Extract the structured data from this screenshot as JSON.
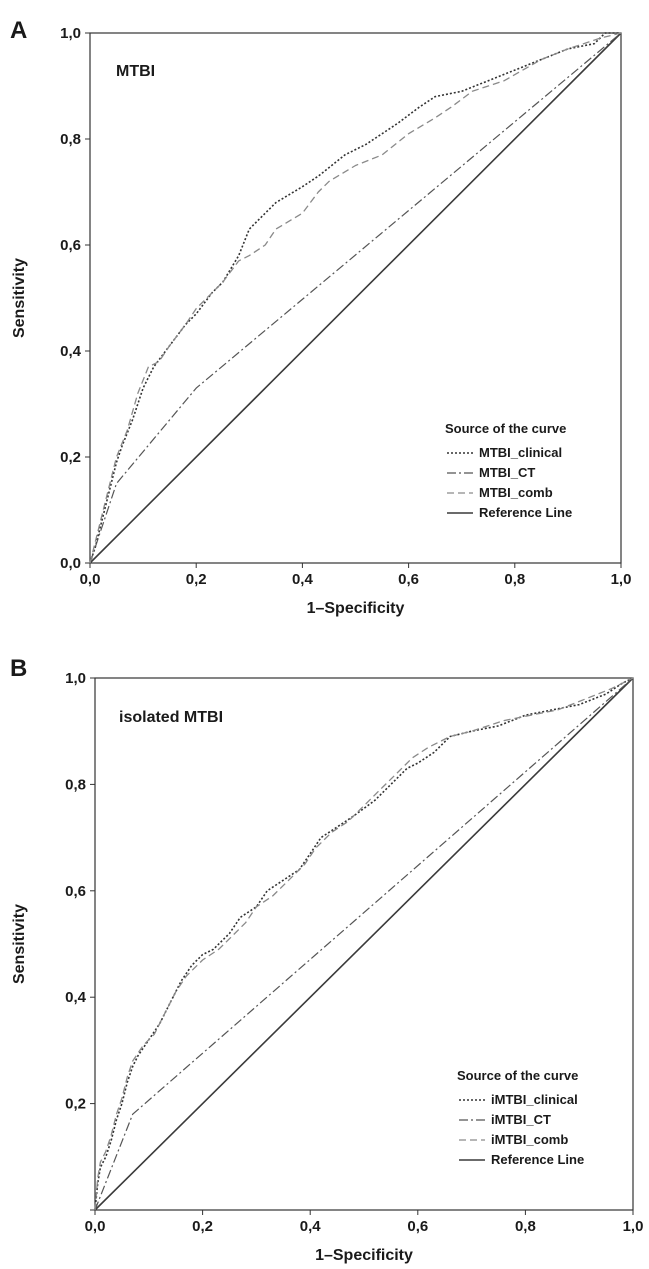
{
  "chart_data": [
    {
      "type": "line",
      "panel_label": "A",
      "inset_title": "MTBI",
      "xlabel": "1–Specificity",
      "ylabel": "Sensitivity",
      "xlim": [
        0,
        1
      ],
      "ylim": [
        0,
        1
      ],
      "x_ticks": [
        "0,0",
        "0,2",
        "0,4",
        "0,6",
        "0,8",
        "1,0"
      ],
      "y_ticks": [
        "0,0",
        "0,2",
        "0,4",
        "0,6",
        "0,8",
        "1,0"
      ],
      "legend": {
        "title": "Source of the curve",
        "placement": "bottom-right"
      },
      "series": [
        {
          "name": "MTBI_clinical",
          "style": "dotted",
          "color": "#333333",
          "points": [
            [
              0,
              0
            ],
            [
              0.01,
              0.03
            ],
            [
              0.02,
              0.07
            ],
            [
              0.03,
              0.11
            ],
            [
              0.04,
              0.15
            ],
            [
              0.05,
              0.19
            ],
            [
              0.06,
              0.22
            ],
            [
              0.08,
              0.27
            ],
            [
              0.1,
              0.33
            ],
            [
              0.12,
              0.37
            ],
            [
              0.15,
              0.41
            ],
            [
              0.18,
              0.45
            ],
            [
              0.2,
              0.47
            ],
            [
              0.23,
              0.51
            ],
            [
              0.25,
              0.53
            ],
            [
              0.28,
              0.58
            ],
            [
              0.3,
              0.63
            ],
            [
              0.33,
              0.66
            ],
            [
              0.35,
              0.68
            ],
            [
              0.4,
              0.71
            ],
            [
              0.43,
              0.73
            ],
            [
              0.48,
              0.77
            ],
            [
              0.52,
              0.79
            ],
            [
              0.55,
              0.81
            ],
            [
              0.58,
              0.83
            ],
            [
              0.62,
              0.86
            ],
            [
              0.65,
              0.88
            ],
            [
              0.7,
              0.89
            ],
            [
              0.75,
              0.91
            ],
            [
              0.8,
              0.93
            ],
            [
              0.85,
              0.95
            ],
            [
              0.9,
              0.97
            ],
            [
              0.95,
              0.98
            ],
            [
              0.97,
              1.0
            ],
            [
              1,
              1
            ]
          ]
        },
        {
          "name": "MTBI_CT",
          "style": "dashdot",
          "color": "#555555",
          "points": [
            [
              0,
              0
            ],
            [
              0.05,
              0.15
            ],
            [
              0.2,
              0.33
            ],
            [
              1,
              1
            ]
          ]
        },
        {
          "name": "MTBI_comb",
          "style": "dashed",
          "color": "#8a8a8a",
          "points": [
            [
              0,
              0
            ],
            [
              0.01,
              0.04
            ],
            [
              0.02,
              0.08
            ],
            [
              0.03,
              0.12
            ],
            [
              0.04,
              0.16
            ],
            [
              0.05,
              0.2
            ],
            [
              0.07,
              0.25
            ],
            [
              0.09,
              0.32
            ],
            [
              0.11,
              0.37
            ],
            [
              0.13,
              0.38
            ],
            [
              0.15,
              0.41
            ],
            [
              0.18,
              0.45
            ],
            [
              0.2,
              0.48
            ],
            [
              0.22,
              0.5
            ],
            [
              0.25,
              0.53
            ],
            [
              0.28,
              0.57
            ],
            [
              0.3,
              0.58
            ],
            [
              0.33,
              0.6
            ],
            [
              0.35,
              0.63
            ],
            [
              0.4,
              0.66
            ],
            [
              0.43,
              0.7
            ],
            [
              0.45,
              0.72
            ],
            [
              0.5,
              0.75
            ],
            [
              0.55,
              0.77
            ],
            [
              0.6,
              0.81
            ],
            [
              0.65,
              0.84
            ],
            [
              0.68,
              0.86
            ],
            [
              0.72,
              0.89
            ],
            [
              0.78,
              0.91
            ],
            [
              0.85,
              0.95
            ],
            [
              0.9,
              0.97
            ],
            [
              0.96,
              0.99
            ],
            [
              1,
              1
            ]
          ]
        },
        {
          "name": "Reference Line",
          "style": "solid",
          "color": "#3a3a3a",
          "points": [
            [
              0,
              0
            ],
            [
              1,
              1
            ]
          ]
        }
      ]
    },
    {
      "type": "line",
      "panel_label": "B",
      "inset_title": "isolated MTBI",
      "xlabel": "1–Specificity",
      "ylabel": "Sensitivity",
      "xlim": [
        0,
        1
      ],
      "ylim": [
        0,
        1
      ],
      "x_ticks": [
        "0,0",
        "0,2",
        "0,4",
        "0,6",
        "0,8",
        "1,0"
      ],
      "y_ticks": [
        "",
        "0,2",
        "0,4",
        "0,6",
        "0,8",
        "1,0"
      ],
      "legend": {
        "title": "Source of the curve",
        "placement": "bottom-right"
      },
      "series": [
        {
          "name": "iMTBI_clinical",
          "style": "dotted",
          "color": "#333333",
          "points": [
            [
              0,
              0
            ],
            [
              0.005,
              0.05
            ],
            [
              0.01,
              0.08
            ],
            [
              0.02,
              0.1
            ],
            [
              0.03,
              0.13
            ],
            [
              0.04,
              0.17
            ],
            [
              0.05,
              0.2
            ],
            [
              0.06,
              0.24
            ],
            [
              0.07,
              0.27
            ],
            [
              0.08,
              0.29
            ],
            [
              0.1,
              0.32
            ],
            [
              0.12,
              0.35
            ],
            [
              0.14,
              0.39
            ],
            [
              0.16,
              0.43
            ],
            [
              0.18,
              0.46
            ],
            [
              0.2,
              0.48
            ],
            [
              0.22,
              0.49
            ],
            [
              0.25,
              0.52
            ],
            [
              0.27,
              0.55
            ],
            [
              0.3,
              0.57
            ],
            [
              0.32,
              0.6
            ],
            [
              0.35,
              0.62
            ],
            [
              0.38,
              0.64
            ],
            [
              0.4,
              0.67
            ],
            [
              0.42,
              0.7
            ],
            [
              0.45,
              0.72
            ],
            [
              0.48,
              0.74
            ],
            [
              0.52,
              0.77
            ],
            [
              0.55,
              0.8
            ],
            [
              0.58,
              0.83
            ],
            [
              0.6,
              0.84
            ],
            [
              0.63,
              0.86
            ],
            [
              0.66,
              0.89
            ],
            [
              0.7,
              0.9
            ],
            [
              0.75,
              0.91
            ],
            [
              0.8,
              0.93
            ],
            [
              0.85,
              0.94
            ],
            [
              0.9,
              0.95
            ],
            [
              0.95,
              0.97
            ],
            [
              0.98,
              0.99
            ],
            [
              1,
              1
            ]
          ]
        },
        {
          "name": "iMTBI_CT",
          "style": "dashdot",
          "color": "#555555",
          "points": [
            [
              0,
              0
            ],
            [
              0.07,
              0.18
            ],
            [
              1,
              1
            ]
          ]
        },
        {
          "name": "iMTBI_comb",
          "style": "dashed",
          "color": "#8a8a8a",
          "points": [
            [
              0,
              0
            ],
            [
              0.005,
              0.06
            ],
            [
              0.01,
              0.09
            ],
            [
              0.02,
              0.11
            ],
            [
              0.03,
              0.14
            ],
            [
              0.04,
              0.18
            ],
            [
              0.05,
              0.21
            ],
            [
              0.06,
              0.25
            ],
            [
              0.07,
              0.28
            ],
            [
              0.09,
              0.31
            ],
            [
              0.11,
              0.33
            ],
            [
              0.13,
              0.37
            ],
            [
              0.15,
              0.41
            ],
            [
              0.17,
              0.44
            ],
            [
              0.2,
              0.47
            ],
            [
              0.23,
              0.49
            ],
            [
              0.25,
              0.51
            ],
            [
              0.28,
              0.54
            ],
            [
              0.3,
              0.57
            ],
            [
              0.33,
              0.59
            ],
            [
              0.36,
              0.62
            ],
            [
              0.39,
              0.65
            ],
            [
              0.41,
              0.68
            ],
            [
              0.44,
              0.71
            ],
            [
              0.47,
              0.73
            ],
            [
              0.5,
              0.76
            ],
            [
              0.53,
              0.79
            ],
            [
              0.56,
              0.82
            ],
            [
              0.59,
              0.85
            ],
            [
              0.62,
              0.87
            ],
            [
              0.66,
              0.89
            ],
            [
              0.7,
              0.9
            ],
            [
              0.76,
              0.92
            ],
            [
              0.81,
              0.93
            ],
            [
              0.86,
              0.94
            ],
            [
              0.91,
              0.96
            ],
            [
              0.96,
              0.98
            ],
            [
              1,
              1
            ]
          ]
        },
        {
          "name": "Reference Line",
          "style": "solid",
          "color": "#3a3a3a",
          "points": [
            [
              0,
              0
            ],
            [
              1,
              1
            ]
          ]
        }
      ]
    }
  ]
}
